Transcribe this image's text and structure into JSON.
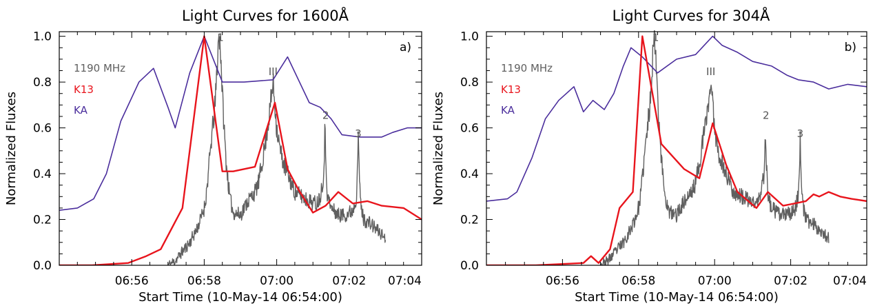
{
  "chart_data": [
    {
      "type": "line",
      "title": "Light Curves for 1600Å",
      "xlabel": "Start Time (10-May-14 06:54:00)",
      "ylabel": "Normalized Fluxes",
      "panel_label": "a)",
      "x_unit": "minutes after 06:54:00",
      "xlim": [
        0,
        10
      ],
      "ylim": [
        0,
        1.02
      ],
      "x_ticks": [
        2,
        4,
        6,
        8,
        10
      ],
      "x_tick_labels": [
        "06:56",
        "06:58",
        "07:00",
        "07:02",
        "07:04"
      ],
      "y_ticks": [
        0.0,
        0.2,
        0.4,
        0.6,
        0.8,
        1.0
      ],
      "y_tick_labels": [
        "0.0",
        "0.2",
        "0.4",
        "0.6",
        "0.8",
        "1.0"
      ],
      "legend_position": "top-left",
      "annotations": [
        {
          "text": "1",
          "x": 4.45,
          "y": 0.98
        },
        {
          "text": "III",
          "x": 5.9,
          "y": 0.83
        },
        {
          "text": "2",
          "x": 7.35,
          "y": 0.64
        },
        {
          "text": "3",
          "x": 8.25,
          "y": 0.56
        }
      ],
      "series": [
        {
          "name": "1190 MHz",
          "color": "#5f5f5f",
          "noisy": true,
          "seed": 11,
          "x": [
            3.0,
            3.2,
            3.4,
            3.6,
            3.8,
            3.9,
            4.0,
            4.05,
            4.1,
            4.2,
            4.3,
            4.35,
            4.4,
            4.45,
            4.5,
            4.55,
            4.6,
            4.7,
            4.8,
            5.0,
            5.2,
            5.4,
            5.5,
            5.6,
            5.7,
            5.8,
            5.9,
            6.0,
            6.1,
            6.2,
            6.3,
            6.5,
            6.7,
            6.9,
            7.1,
            7.2,
            7.3,
            7.33,
            7.36,
            7.4,
            7.5,
            7.7,
            7.9,
            8.1,
            8.2,
            8.25,
            8.28,
            8.32,
            8.4,
            8.6,
            8.8,
            9.0
          ],
          "y": [
            0.0,
            0.02,
            0.06,
            0.1,
            0.16,
            0.2,
            0.25,
            0.3,
            0.38,
            0.55,
            0.7,
            0.85,
            1.0,
            0.95,
            0.75,
            0.6,
            0.46,
            0.3,
            0.23,
            0.22,
            0.28,
            0.32,
            0.36,
            0.45,
            0.55,
            0.66,
            0.8,
            0.6,
            0.5,
            0.44,
            0.4,
            0.32,
            0.3,
            0.28,
            0.27,
            0.3,
            0.4,
            0.6,
            0.45,
            0.3,
            0.25,
            0.22,
            0.22,
            0.24,
            0.3,
            0.54,
            0.4,
            0.26,
            0.2,
            0.18,
            0.15,
            0.12
          ]
        },
        {
          "name": "K13",
          "color": "#e8141c",
          "noisy": false,
          "x": [
            0,
            0.9,
            1.9,
            2.4,
            2.8,
            3.4,
            4.0,
            4.5,
            4.8,
            5.4,
            5.95,
            6.3,
            6.6,
            7.0,
            7.35,
            7.7,
            8.1,
            8.5,
            8.9,
            9.5,
            10.0
          ],
          "y": [
            0.0,
            0.0,
            0.01,
            0.04,
            0.07,
            0.25,
            1.0,
            0.41,
            0.41,
            0.43,
            0.71,
            0.42,
            0.33,
            0.23,
            0.26,
            0.32,
            0.27,
            0.28,
            0.26,
            0.25,
            0.2
          ]
        },
        {
          "name": "KA",
          "color": "#4a2d9c",
          "noisy": false,
          "x": [
            0,
            0.5,
            0.95,
            1.3,
            1.7,
            2.2,
            2.6,
            3.0,
            3.2,
            3.6,
            4.0,
            4.5,
            5.1,
            5.9,
            6.3,
            6.9,
            7.2,
            7.5,
            7.8,
            8.3,
            8.9,
            9.2,
            9.6,
            10.0
          ],
          "y": [
            0.24,
            0.25,
            0.29,
            0.4,
            0.63,
            0.8,
            0.86,
            0.69,
            0.6,
            0.84,
            1.0,
            0.8,
            0.8,
            0.81,
            0.91,
            0.71,
            0.69,
            0.64,
            0.57,
            0.56,
            0.56,
            0.58,
            0.6,
            0.6
          ]
        }
      ]
    },
    {
      "type": "line",
      "title": "Light Curves for 304Å",
      "xlabel": "Start Time (10-May-14 06:54:00)",
      "ylabel": "Normalized Fluxes",
      "panel_label": "b)",
      "x_unit": "minutes after 06:54:00",
      "xlim": [
        0,
        10
      ],
      "ylim": [
        0,
        1.02
      ],
      "x_ticks": [
        2,
        4,
        6,
        8,
        10
      ],
      "x_tick_labels": [
        "06:56",
        "06:58",
        "07:00",
        "07:02",
        "07:04"
      ],
      "y_ticks": [
        0.0,
        0.2,
        0.4,
        0.6,
        0.8,
        1.0
      ],
      "y_tick_labels": [
        "0.0",
        "0.2",
        "0.4",
        "0.6",
        "0.8",
        "1.0"
      ],
      "legend_position": "top-left",
      "annotations": [
        {
          "text": "1",
          "x": 4.45,
          "y": 0.98
        },
        {
          "text": "III",
          "x": 5.9,
          "y": 0.83
        },
        {
          "text": "2",
          "x": 7.35,
          "y": 0.64
        },
        {
          "text": "3",
          "x": 8.25,
          "y": 0.56
        }
      ],
      "series": [
        {
          "name": "1190 MHz",
          "color": "#5f5f5f",
          "noisy": true,
          "seed": 23,
          "x": [
            3.0,
            3.2,
            3.4,
            3.6,
            3.8,
            3.9,
            4.0,
            4.05,
            4.1,
            4.2,
            4.3,
            4.35,
            4.4,
            4.45,
            4.5,
            4.55,
            4.6,
            4.7,
            4.8,
            5.0,
            5.2,
            5.4,
            5.5,
            5.6,
            5.7,
            5.8,
            5.9,
            6.0,
            6.1,
            6.2,
            6.3,
            6.5,
            6.7,
            6.9,
            7.1,
            7.2,
            7.3,
            7.33,
            7.36,
            7.4,
            7.5,
            7.7,
            7.9,
            8.1,
            8.2,
            8.25,
            8.28,
            8.32,
            8.4,
            8.6,
            8.8,
            9.0
          ],
          "y": [
            0.0,
            0.02,
            0.06,
            0.1,
            0.16,
            0.2,
            0.25,
            0.3,
            0.38,
            0.55,
            0.7,
            0.85,
            1.0,
            0.95,
            0.75,
            0.6,
            0.46,
            0.3,
            0.23,
            0.22,
            0.28,
            0.32,
            0.36,
            0.45,
            0.55,
            0.66,
            0.8,
            0.6,
            0.5,
            0.44,
            0.4,
            0.32,
            0.3,
            0.28,
            0.27,
            0.3,
            0.4,
            0.6,
            0.45,
            0.3,
            0.25,
            0.22,
            0.22,
            0.24,
            0.3,
            0.54,
            0.4,
            0.26,
            0.2,
            0.18,
            0.15,
            0.12
          ]
        },
        {
          "name": "K13",
          "color": "#e8141c",
          "noisy": false,
          "x": [
            0,
            1.3,
            2.55,
            2.75,
            2.95,
            3.25,
            3.5,
            3.85,
            4.1,
            4.6,
            5.2,
            5.6,
            5.95,
            6.3,
            6.6,
            7.1,
            7.4,
            7.8,
            8.1,
            8.4,
            8.6,
            8.75,
            9.0,
            9.3,
            9.6,
            10.0
          ],
          "y": [
            0.0,
            0.0,
            0.01,
            0.04,
            0.01,
            0.07,
            0.25,
            0.32,
            1.0,
            0.53,
            0.42,
            0.38,
            0.62,
            0.44,
            0.32,
            0.25,
            0.32,
            0.26,
            0.27,
            0.28,
            0.31,
            0.3,
            0.32,
            0.3,
            0.29,
            0.28
          ]
        },
        {
          "name": "KA",
          "color": "#4a2d9c",
          "noisy": false,
          "x": [
            0,
            0.55,
            0.8,
            1.2,
            1.55,
            1.9,
            2.3,
            2.55,
            2.8,
            3.1,
            3.35,
            3.6,
            3.8,
            4.1,
            4.5,
            5.0,
            5.5,
            5.95,
            6.2,
            6.6,
            7.0,
            7.5,
            7.9,
            8.2,
            8.6,
            9.0,
            9.5,
            10.0
          ],
          "y": [
            0.28,
            0.29,
            0.32,
            0.47,
            0.64,
            0.72,
            0.78,
            0.67,
            0.72,
            0.68,
            0.75,
            0.87,
            0.95,
            0.91,
            0.84,
            0.9,
            0.92,
            1.0,
            0.96,
            0.93,
            0.89,
            0.87,
            0.83,
            0.81,
            0.8,
            0.77,
            0.79,
            0.78
          ]
        }
      ]
    }
  ]
}
